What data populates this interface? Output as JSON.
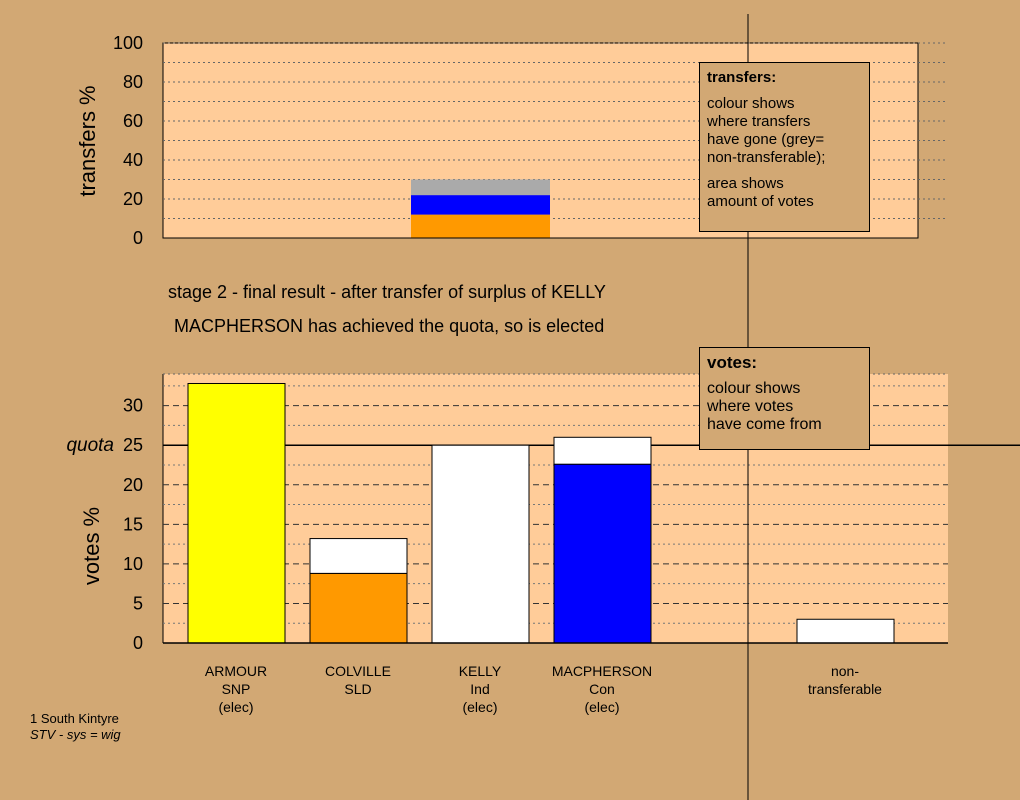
{
  "colors": {
    "background": "#d2a874",
    "plot_area": "#ffcc99",
    "snp": "#ffff00",
    "sld": "#ff9900",
    "con": "#0000ff",
    "ind": "#ffffff",
    "non_transferable": "#aaaaaa"
  },
  "chart_data": [
    {
      "type": "bar",
      "stacked": true,
      "ylabel": "transfers %",
      "ylim": [
        0,
        100
      ],
      "yticks": [
        0,
        20,
        40,
        60,
        80,
        100
      ],
      "grid": "dotted",
      "categories": [
        "KELLY"
      ],
      "series": [
        {
          "color": "#ff9900",
          "values": [
            12
          ]
        },
        {
          "color": "#0000ff",
          "values": [
            10
          ]
        },
        {
          "color": "#aaaaaa",
          "values": [
            8
          ]
        }
      ],
      "legend": {
        "position": "top-right",
        "title": "transfers:",
        "lines_a": [
          "colour shows",
          "where transfers",
          "have gone (grey=",
          "non-transferable);"
        ],
        "lines_b": [
          "area shows",
          "amount of votes"
        ]
      }
    },
    {
      "type": "bar",
      "stacked": true,
      "ylabel": "votes %",
      "ylim": [
        0,
        34
      ],
      "yticks": [
        0,
        5,
        10,
        15,
        20,
        25,
        30
      ],
      "quota": {
        "label": "quota",
        "value": 25
      },
      "grid": "dashed",
      "categories": [
        {
          "lines": [
            "ARMOUR",
            "SNP",
            "(elec)"
          ],
          "segments": [
            {
              "color": "#ffff00",
              "value": 32.8
            }
          ]
        },
        {
          "lines": [
            "COLVILLE",
            "SLD"
          ],
          "segments": [
            {
              "color": "#ff9900",
              "value": 8.8
            },
            {
              "color": "#ffffff",
              "value": 4.4
            }
          ]
        },
        {
          "lines": [
            "KELLY",
            "Ind",
            "(elec)"
          ],
          "segments": [
            {
              "color": "#ffffff",
              "value": 25
            }
          ]
        },
        {
          "lines": [
            "MACPHERSON",
            "Con",
            "(elec)"
          ],
          "segments": [
            {
              "color": "#0000ff",
              "value": 22.6
            },
            {
              "color": "#ffffff",
              "value": 3.4
            }
          ]
        },
        {
          "lines": [
            "non-",
            "transferable"
          ],
          "segments": [
            {
              "color": "#ffffff",
              "value": 3
            }
          ]
        }
      ],
      "legend": {
        "position": "top-right",
        "title": "votes:",
        "lines": [
          "colour shows",
          "where votes",
          "have come from"
        ]
      }
    }
  ],
  "messages": {
    "stage": "stage 2 - final result - after transfer of surplus of KELLY",
    "result": "MACPHERSON has achieved the quota, so is elected"
  },
  "footer": {
    "line1": "1 South Kintyre",
    "line2": "STV - sys = wig"
  }
}
